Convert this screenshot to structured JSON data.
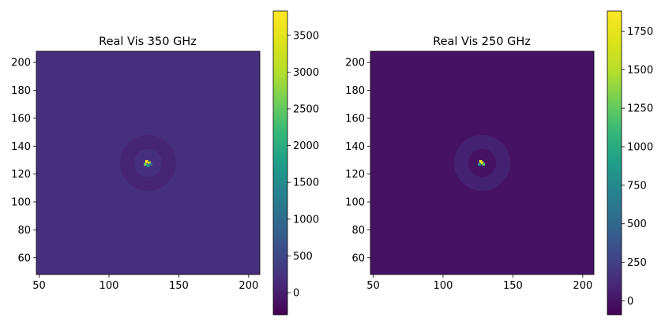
{
  "chart_data": [
    {
      "type": "heatmap",
      "title": "Real Vis 350 GHz",
      "xlabel": "",
      "ylabel": "",
      "xlim": [
        48,
        208
      ],
      "ylim": [
        48,
        208
      ],
      "xticks": [
        50,
        100,
        150,
        200
      ],
      "yticks": [
        60,
        80,
        100,
        120,
        140,
        160,
        180,
        200
      ],
      "colormap": "viridis",
      "colorbar": {
        "min": -300,
        "max": 3830,
        "ticks": [
          0,
          500,
          1000,
          1500,
          2000,
          2500,
          3000,
          3500
        ]
      },
      "background_value": 200,
      "ring": {
        "center": [
          128,
          128
        ],
        "inner_radius": 10,
        "outer_radius": 20,
        "value": 0
      },
      "hot_pixels": [
        {
          "x": 127,
          "y": 129,
          "value": 3800
        },
        {
          "x": 129,
          "y": 128,
          "value": 3200
        },
        {
          "x": 126,
          "y": 127,
          "value": 2600
        },
        {
          "x": 128,
          "y": 126,
          "value": 1700
        },
        {
          "x": 130,
          "y": 127,
          "value": 1000
        }
      ]
    },
    {
      "type": "heatmap",
      "title": "Real Vis 250 GHz",
      "xlabel": "",
      "ylabel": "",
      "xlim": [
        48,
        208
      ],
      "ylim": [
        48,
        208
      ],
      "xticks": [
        50,
        100,
        150,
        200
      ],
      "yticks": [
        60,
        80,
        100,
        120,
        140,
        160,
        180,
        200
      ],
      "colormap": "viridis",
      "colorbar": {
        "min": -90,
        "max": 1880,
        "ticks": [
          0,
          250,
          500,
          750,
          1000,
          1250,
          1500,
          1750
        ]
      },
      "background_value": 0,
      "ring": {
        "center": [
          128,
          128
        ],
        "inner_radius": 10,
        "outer_radius": 20,
        "value": 150
      },
      "hot_pixels": [
        {
          "x": 127,
          "y": 129,
          "value": 1870
        },
        {
          "x": 128,
          "y": 128,
          "value": 1700
        },
        {
          "x": 129,
          "y": 127,
          "value": 1200
        },
        {
          "x": 126,
          "y": 127,
          "value": 800
        }
      ]
    }
  ]
}
